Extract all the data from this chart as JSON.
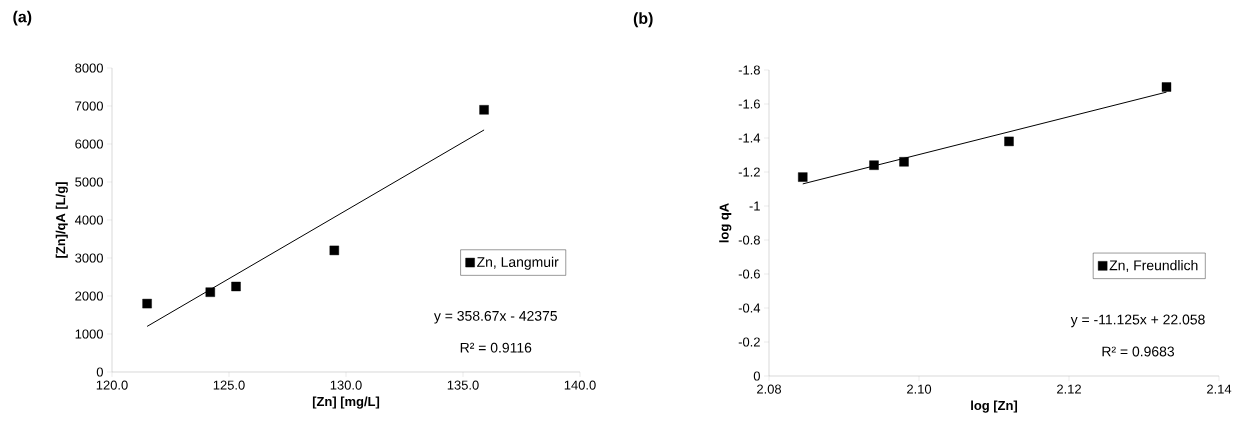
{
  "chart_data": [
    {
      "type": "scatter",
      "title": "(a)",
      "xlabel": "[Zn] [mg/L]",
      "ylabel": "[Zn]/qA [L/g]",
      "xlim": [
        120,
        140
      ],
      "xticks": [
        {
          "value": 120,
          "label": "120.0"
        },
        {
          "value": 125,
          "label": "125.0"
        },
        {
          "value": 130,
          "label": "130.0"
        },
        {
          "value": 135,
          "label": "135.0"
        },
        {
          "value": 140,
          "label": "140.0"
        }
      ],
      "ylim": [
        0,
        8000
      ],
      "yticks": [
        0,
        1000,
        2000,
        3000,
        4000,
        5000,
        6000,
        7000,
        8000
      ],
      "legend": "right",
      "series": [
        {
          "name": "Zn, Langmuir",
          "marker": "square",
          "color": "#000000",
          "x": [
            121.5,
            124.2,
            125.3,
            129.5,
            135.9
          ],
          "values": [
            1800,
            2100,
            2250,
            3200,
            6900
          ]
        },
        {
          "type": "line",
          "marker": "none",
          "color": "#000000",
          "x": [
            121.5,
            135.9
          ],
          "values": [
            1200,
            6370
          ]
        }
      ],
      "annotations": [
        "y = 358.67x - 42375",
        "R² = 0.9116"
      ]
    },
    {
      "type": "scatter",
      "title": "(b)",
      "xlabel": "log [Zn]",
      "ylabel": "log qA",
      "xlim": [
        2.08,
        2.14
      ],
      "xticks": [
        {
          "value": 2.08,
          "label": "2.08"
        },
        {
          "value": 2.1,
          "label": "2.10"
        },
        {
          "value": 2.12,
          "label": "2.12"
        },
        {
          "value": 2.14,
          "label": "2.14"
        }
      ],
      "ylim": [
        0,
        -1.8
      ],
      "yticks": [
        0,
        -0.2,
        -0.4,
        -0.6,
        -0.8,
        -1,
        -1.2,
        -1.4,
        -1.6,
        -1.8
      ],
      "legend": "right",
      "series": [
        {
          "name": "Zn, Freundlich",
          "marker": "square",
          "color": "#000000",
          "x": [
            2.0845,
            2.094,
            2.098,
            2.112,
            2.133
          ],
          "values": [
            -1.17,
            -1.24,
            -1.26,
            -1.38,
            -1.7
          ]
        },
        {
          "type": "line",
          "marker": "none",
          "color": "#000000",
          "x": [
            2.0845,
            2.133
          ],
          "values": [
            -1.13,
            -1.67
          ]
        }
      ],
      "annotations": [
        "y = -11.125x + 22.058",
        "R² = 0.9683"
      ]
    }
  ]
}
